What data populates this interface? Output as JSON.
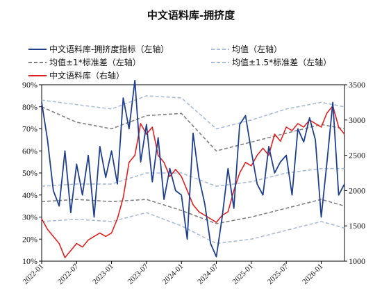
{
  "chart_data": {
    "type": "line",
    "title": "中文语料库-拥挤度",
    "x_ticks": [
      "2022-01",
      "2022-07",
      "2023-01",
      "2023-07",
      "2024-01",
      "2024-07",
      "2025-01",
      "2025-07",
      "2026-01"
    ],
    "x_range": [
      "2022-01",
      "2026-05"
    ],
    "y_left": {
      "min": 10,
      "max": 90,
      "step": 10,
      "tick_labels": [
        "10%",
        "20%",
        "30%",
        "40%",
        "50%",
        "60%",
        "70%",
        "80%",
        "90%"
      ]
    },
    "y_right": {
      "min": 1000,
      "max": 3500,
      "step": 500,
      "tick_labels": [
        "1000",
        "1500",
        "2000",
        "2500",
        "3000",
        "3500"
      ]
    },
    "legend": [
      {
        "key": "crowding",
        "label": "中文语料库-拥挤度指标（左轴）"
      },
      {
        "key": "mean",
        "label": "均值（左轴）"
      },
      {
        "key": "band1",
        "label": "均值±1*标准差（左轴）"
      },
      {
        "key": "band15",
        "label": "均值±1.5*标准差（左轴）"
      },
      {
        "key": "index",
        "label": "中文语料库（右轴）"
      }
    ],
    "colors": {
      "crowding": "#1f3f8f",
      "mean": "#a9bcd8",
      "band1": "#808080",
      "band15": "#a9bcd8",
      "index": "#e02020"
    },
    "series": [
      {
        "key": "crowding",
        "axis": "left",
        "x": [
          "2022-01",
          "2022-02",
          "2022-03",
          "2022-04",
          "2022-05",
          "2022-06",
          "2022-07",
          "2022-08",
          "2022-09",
          "2022-10",
          "2022-11",
          "2022-12",
          "2023-01",
          "2023-02",
          "2023-03",
          "2023-04",
          "2023-05",
          "2023-06",
          "2023-07",
          "2023-08",
          "2023-09",
          "2023-10",
          "2023-11",
          "2023-12",
          "2024-01",
          "2024-02",
          "2024-03",
          "2024-04",
          "2024-05",
          "2024-06",
          "2024-07",
          "2024-08",
          "2024-09",
          "2024-10",
          "2024-11",
          "2024-12",
          "2025-01",
          "2025-02",
          "2025-03",
          "2025-04",
          "2025-05",
          "2025-06",
          "2025-07",
          "2025-08",
          "2025-09",
          "2025-10",
          "2025-11",
          "2025-12",
          "2026-01",
          "2026-02",
          "2026-03",
          "2026-04",
          "2026-05"
        ],
        "values": [
          82,
          65,
          42,
          35,
          60,
          32,
          54,
          40,
          58,
          30,
          62,
          48,
          60,
          45,
          84,
          70,
          92,
          55,
          72,
          46,
          66,
          38,
          52,
          42,
          40,
          20,
          68,
          48,
          36,
          18,
          12,
          30,
          52,
          34,
          72,
          76,
          60,
          45,
          40,
          62,
          50,
          55,
          58,
          40,
          70,
          64,
          75,
          65,
          30,
          55,
          82,
          40,
          45
        ]
      },
      {
        "key": "mean",
        "axis": "left",
        "x": [
          "2022-01",
          "2022-07",
          "2023-01",
          "2023-07",
          "2024-01",
          "2024-07",
          "2025-01",
          "2025-07",
          "2026-01",
          "2026-05"
        ],
        "values": [
          44,
          45,
          45,
          50,
          50,
          44,
          46,
          50,
          52,
          52
        ]
      },
      {
        "key": "band1_upper",
        "axis": "left",
        "x": [
          "2022-01",
          "2022-07",
          "2023-01",
          "2023-07",
          "2024-01",
          "2024-07",
          "2025-01",
          "2025-07",
          "2026-01",
          "2026-05"
        ],
        "values": [
          80,
          73,
          70,
          76,
          77,
          60,
          64,
          68,
          72,
          70
        ]
      },
      {
        "key": "band1_lower",
        "axis": "left",
        "x": [
          "2022-01",
          "2022-07",
          "2023-01",
          "2023-07",
          "2024-01",
          "2024-07",
          "2025-01",
          "2025-07",
          "2026-01",
          "2026-05"
        ],
        "values": [
          37,
          38,
          37,
          38,
          33,
          27,
          30,
          34,
          38,
          35
        ]
      },
      {
        "key": "band15_upper",
        "axis": "left",
        "x": [
          "2022-01",
          "2022-07",
          "2023-01",
          "2023-07",
          "2024-01",
          "2024-07",
          "2025-01",
          "2025-07",
          "2026-01",
          "2026-05"
        ],
        "values": [
          83,
          81,
          79,
          85,
          84,
          70,
          74,
          79,
          82,
          80
        ]
      },
      {
        "key": "band15_lower",
        "axis": "left",
        "x": [
          "2022-01",
          "2022-07",
          "2023-01",
          "2023-07",
          "2024-01",
          "2024-07",
          "2025-01",
          "2025-07",
          "2026-01",
          "2026-05"
        ],
        "values": [
          28,
          29,
          28,
          32,
          26,
          18,
          20,
          24,
          28,
          25
        ]
      },
      {
        "key": "index",
        "axis": "right",
        "x": [
          "2022-01",
          "2022-02",
          "2022-03",
          "2022-04",
          "2022-05",
          "2022-06",
          "2022-07",
          "2022-08",
          "2022-09",
          "2022-10",
          "2022-11",
          "2022-12",
          "2023-01",
          "2023-02",
          "2023-03",
          "2023-04",
          "2023-05",
          "2023-06",
          "2023-07",
          "2023-08",
          "2023-09",
          "2023-10",
          "2023-11",
          "2023-12",
          "2024-01",
          "2024-02",
          "2024-03",
          "2024-04",
          "2024-05",
          "2024-06",
          "2024-07",
          "2024-08",
          "2024-09",
          "2024-10",
          "2024-11",
          "2024-12",
          "2025-01",
          "2025-02",
          "2025-03",
          "2025-04",
          "2025-05",
          "2025-06",
          "2025-07",
          "2025-08",
          "2025-09",
          "2025-10",
          "2025-11",
          "2025-12",
          "2026-01",
          "2026-02",
          "2026-03",
          "2026-04",
          "2026-05"
        ],
        "values": [
          1600,
          1450,
          1350,
          1250,
          1050,
          1150,
          1250,
          1200,
          1300,
          1350,
          1400,
          1350,
          1400,
          1600,
          1900,
          2400,
          2500,
          2950,
          2800,
          2900,
          2500,
          2400,
          2200,
          2300,
          2200,
          2000,
          1800,
          1700,
          1650,
          1600,
          1550,
          1650,
          1700,
          2000,
          2250,
          2400,
          2350,
          2500,
          2600,
          2500,
          2800,
          2700,
          2900,
          2850,
          2950,
          2900,
          3000,
          2950,
          2900,
          3100,
          3200,
          2900,
          2800
        ]
      }
    ]
  }
}
